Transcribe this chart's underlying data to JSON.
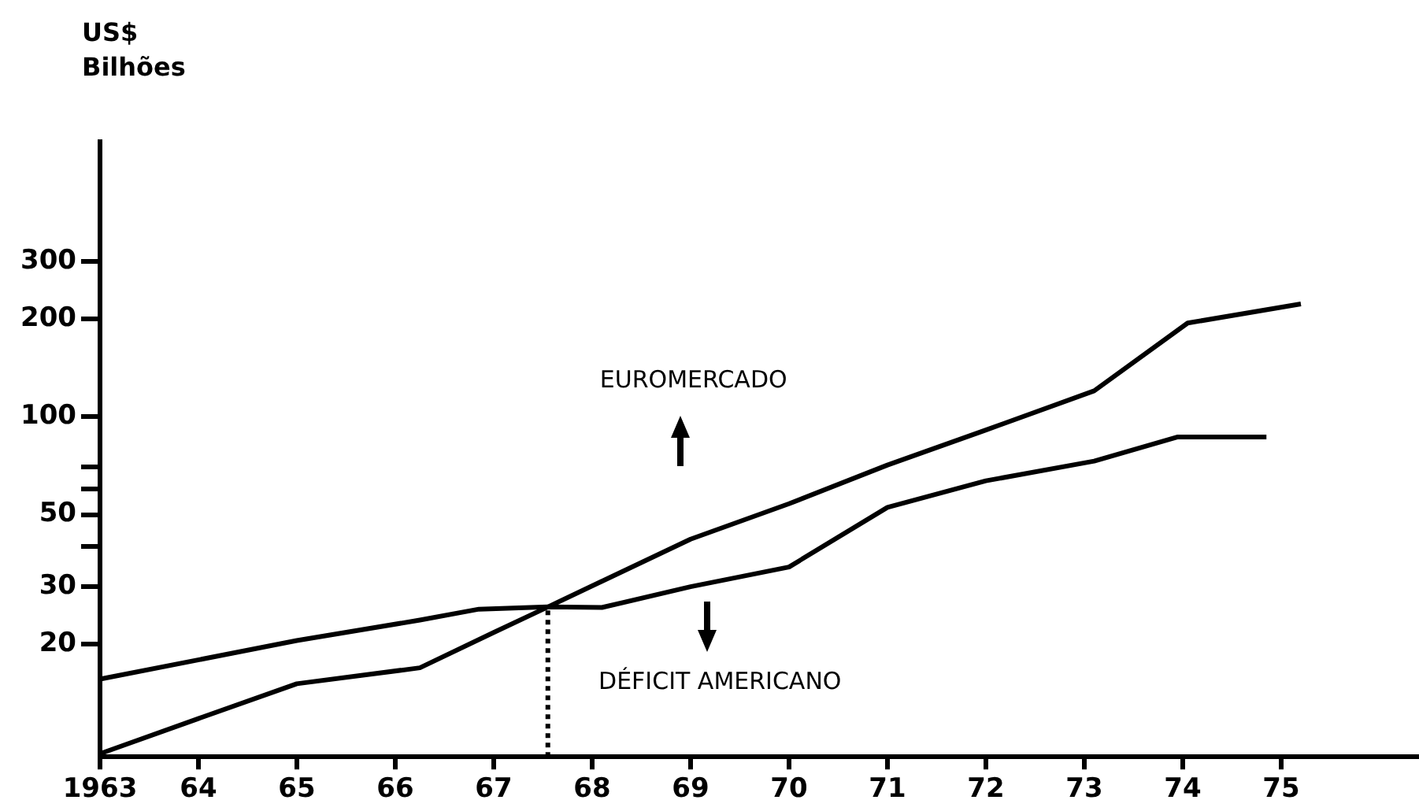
{
  "chart_data": {
    "type": "line",
    "ylabel": "US$\nBilhões",
    "log": "y",
    "grid": false,
    "legend": false,
    "marker": "none",
    "line_style": "solid",
    "xlim": [
      1963,
      1976.4
    ],
    "xticks": [
      1963,
      {
        "value": 1964,
        "label": "64"
      },
      {
        "value": 1965,
        "label": "65"
      },
      {
        "value": 1966,
        "label": "66"
      },
      {
        "value": 1967,
        "label": "67"
      },
      {
        "value": 1968,
        "label": "68"
      },
      {
        "value": 1969,
        "label": "69"
      },
      {
        "value": 1970,
        "label": "70"
      },
      {
        "value": 1971,
        "label": "71"
      },
      {
        "value": 1972,
        "label": "72"
      },
      {
        "value": 1973,
        "label": "73"
      },
      {
        "value": 1974,
        "label": "74"
      },
      {
        "value": 1975,
        "label": "75"
      }
    ],
    "ylim": [
      9,
      700
    ],
    "yticks": [
      20,
      30,
      {
        "value": 40,
        "label": null
      },
      50,
      {
        "value": 60,
        "label": null
      },
      {
        "value": 70,
        "label": null
      },
      100,
      200,
      300
    ],
    "series": [
      {
        "color": "#000000",
        "x": [
          1963,
          1964,
          1965,
          1966.25,
          1967,
          1967.55,
          1969,
          1970,
          1971,
          1972,
          1973.1,
          1974.05,
          1975.2
        ],
        "values": [
          9.2,
          11.8,
          15.1,
          16.9,
          21.7,
          26,
          42,
          54,
          71,
          91,
          120,
          194,
          222
        ]
      },
      {
        "color": "#000000",
        "x": [
          1963,
          1965,
          1966.25,
          1966.85,
          1967.55,
          1968.1,
          1969,
          1970,
          1971,
          1972,
          1973.1,
          1973.95,
          1974.85
        ],
        "values": [
          15.6,
          20.5,
          23.7,
          25.6,
          26,
          25.9,
          30,
          34.5,
          52.6,
          63.5,
          73,
          86.6,
          86.6
        ]
      },
      {
        "color": "#000000",
        "line_style": "dotted",
        "x": [
          1967.55,
          1967.55
        ],
        "values": [
          9,
          26
        ]
      }
    ],
    "annotations": [
      "EUROMERCADO",
      "DÉFICIT AMERICANO"
    ]
  }
}
